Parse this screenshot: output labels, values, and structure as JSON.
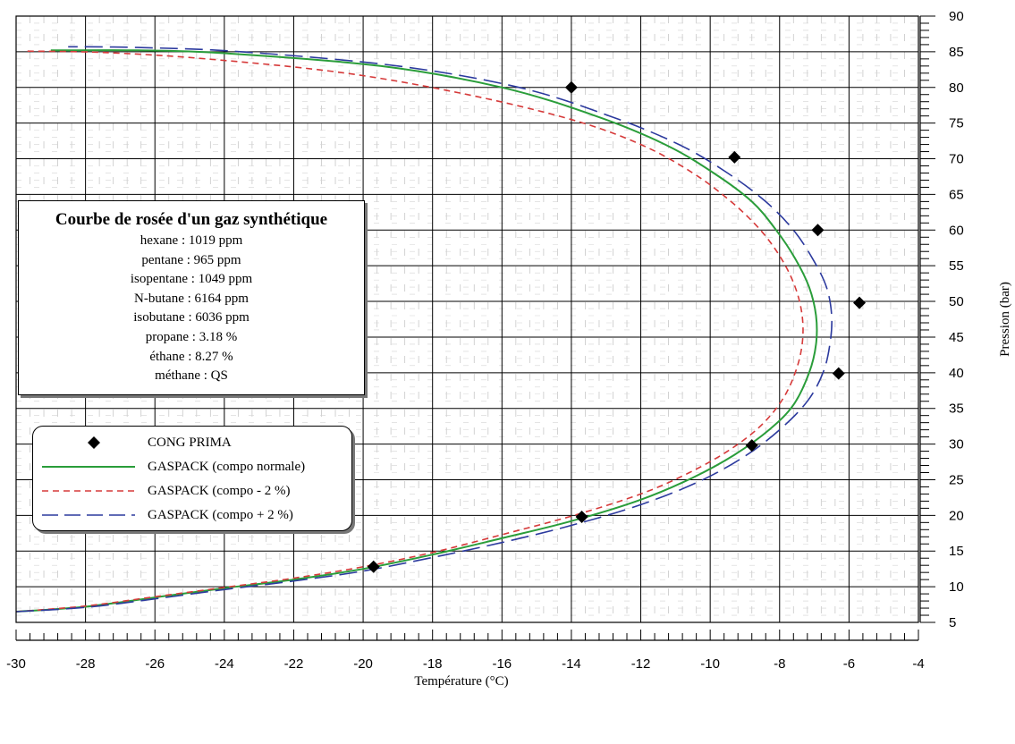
{
  "chart_data": {
    "type": "line",
    "xlabel": "Température (°C)",
    "ylabel": "Pression (bar)",
    "xlim": [
      -30,
      -4
    ],
    "ylim": [
      5,
      90
    ],
    "x_ticks": [
      "-30",
      "-28",
      "-26",
      "-24",
      "-22",
      "-20",
      "-18",
      "-16",
      "-14",
      "-12",
      "-10",
      "-8",
      "-6",
      "-4"
    ],
    "y_ticks": [
      "5",
      "10",
      "15",
      "20",
      "25",
      "30",
      "35",
      "40",
      "45",
      "50",
      "55",
      "60",
      "65",
      "70",
      "75",
      "80",
      "85",
      "90"
    ],
    "grid": true,
    "legend_placement": "lower-left",
    "series": [
      {
        "name": "CONG PRIMA",
        "style": "markers",
        "marker": "diamond",
        "color": "#000000",
        "points": [
          [
            -14.0,
            80.0
          ],
          [
            -9.3,
            70.2
          ],
          [
            -6.9,
            60.0
          ],
          [
            -5.7,
            49.8
          ],
          [
            -6.3,
            39.9
          ],
          [
            -8.8,
            29.8
          ],
          [
            -13.7,
            19.8
          ],
          [
            -19.7,
            12.8
          ]
        ]
      },
      {
        "name": "GASPACK (compo normale)",
        "style": "solid",
        "color": "#2a9d3a",
        "points": [
          [
            -30.0,
            6.5
          ],
          [
            -28.0,
            7.2
          ],
          [
            -26.0,
            8.5
          ],
          [
            -24.0,
            9.8
          ],
          [
            -22.0,
            11.0
          ],
          [
            -20.0,
            12.5
          ],
          [
            -18.0,
            14.5
          ],
          [
            -16.0,
            16.8
          ],
          [
            -14.0,
            19.2
          ],
          [
            -12.0,
            22.2
          ],
          [
            -10.5,
            25.3
          ],
          [
            -9.3,
            28.5
          ],
          [
            -8.3,
            32.0
          ],
          [
            -7.6,
            35.5
          ],
          [
            -7.15,
            40.0
          ],
          [
            -6.95,
            44.0
          ],
          [
            -6.95,
            48.0
          ],
          [
            -7.15,
            52.0
          ],
          [
            -7.55,
            56.0
          ],
          [
            -8.1,
            60.0
          ],
          [
            -8.8,
            64.0
          ],
          [
            -9.9,
            68.0
          ],
          [
            -11.3,
            72.0
          ],
          [
            -13.3,
            76.0
          ],
          [
            -16.0,
            80.0
          ],
          [
            -19.5,
            83.0
          ],
          [
            -24.0,
            84.8
          ],
          [
            -26.5,
            85.2
          ],
          [
            -29.0,
            85.2
          ]
        ]
      },
      {
        "name": "GASPACK (compo - 2 %)",
        "style": "dashed",
        "color": "#d63a3a",
        "points": [
          [
            -30.0,
            6.5
          ],
          [
            -28.0,
            7.3
          ],
          [
            -26.0,
            8.6
          ],
          [
            -24.0,
            9.9
          ],
          [
            -22.0,
            11.2
          ],
          [
            -20.0,
            12.8
          ],
          [
            -18.0,
            14.8
          ],
          [
            -16.0,
            17.3
          ],
          [
            -14.0,
            19.9
          ],
          [
            -12.0,
            23.0
          ],
          [
            -10.6,
            26.0
          ],
          [
            -9.5,
            29.0
          ],
          [
            -8.6,
            32.3
          ],
          [
            -7.95,
            36.0
          ],
          [
            -7.55,
            40.0
          ],
          [
            -7.35,
            44.0
          ],
          [
            -7.35,
            48.0
          ],
          [
            -7.55,
            52.0
          ],
          [
            -7.95,
            56.0
          ],
          [
            -8.55,
            60.0
          ],
          [
            -9.4,
            64.0
          ],
          [
            -10.5,
            68.0
          ],
          [
            -12.0,
            72.0
          ],
          [
            -14.0,
            75.5
          ],
          [
            -17.0,
            79.0
          ],
          [
            -20.5,
            82.0
          ],
          [
            -24.5,
            84.0
          ],
          [
            -27.5,
            84.9
          ],
          [
            -29.8,
            85.1
          ]
        ]
      },
      {
        "name": "GASPACK (compo + 2 %)",
        "style": "long-dashed",
        "color": "#2c3a9e",
        "points": [
          [
            -30.0,
            6.5
          ],
          [
            -28.0,
            7.1
          ],
          [
            -26.0,
            8.3
          ],
          [
            -24.0,
            9.6
          ],
          [
            -22.0,
            10.8
          ],
          [
            -20.0,
            12.2
          ],
          [
            -18.0,
            14.1
          ],
          [
            -16.0,
            16.2
          ],
          [
            -14.0,
            18.6
          ],
          [
            -12.0,
            21.5
          ],
          [
            -10.3,
            24.8
          ],
          [
            -9.0,
            28.3
          ],
          [
            -8.0,
            32.0
          ],
          [
            -7.2,
            36.0
          ],
          [
            -6.75,
            40.0
          ],
          [
            -6.55,
            44.0
          ],
          [
            -6.5,
            48.0
          ],
          [
            -6.65,
            52.0
          ],
          [
            -7.05,
            56.0
          ],
          [
            -7.6,
            60.0
          ],
          [
            -8.4,
            64.0
          ],
          [
            -9.5,
            68.0
          ],
          [
            -10.9,
            72.0
          ],
          [
            -12.9,
            76.0
          ],
          [
            -15.5,
            80.0
          ],
          [
            -19.0,
            83.0
          ],
          [
            -23.5,
            85.0
          ],
          [
            -26.5,
            85.6
          ],
          [
            -28.5,
            85.7
          ]
        ]
      }
    ]
  },
  "info_box": {
    "title": "Courbe de rosée d'un gaz synthétique",
    "lines": [
      "hexane : 1019 ppm",
      "pentane : 965 ppm",
      "isopentane : 1049 ppm",
      "N-butane : 6164 ppm",
      "isobutane : 6036 ppm",
      "propane : 3.18 %",
      "éthane : 8.27 %",
      "méthane : QS"
    ]
  },
  "legend": {
    "items": [
      "CONG PRIMA",
      "GASPACK (compo normale)",
      "GASPACK (compo - 2 %)",
      "GASPACK (compo + 2 %)"
    ]
  }
}
